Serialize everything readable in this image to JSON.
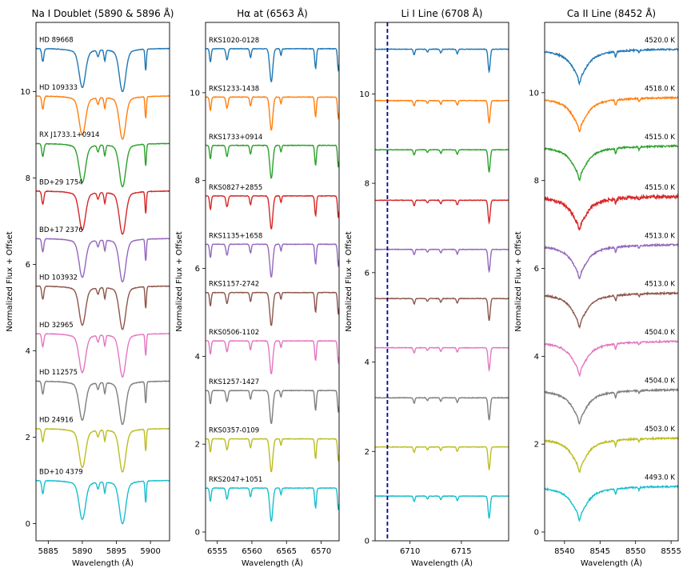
{
  "figure": {
    "colors": [
      "#1f77b4",
      "#ff7f0e",
      "#2ca02c",
      "#d62728",
      "#9467bd",
      "#8c564b",
      "#e377c2",
      "#7f7f7f",
      "#bcbd22",
      "#17becf"
    ]
  },
  "chart_data": [
    {
      "type": "line",
      "title": "Na I Doublet (5890 & 5896 Å)",
      "xlabel": "Wavelength (Å)",
      "ylabel": "Normalized Flux + Offset",
      "xlim": [
        5883.2,
        5902.8
      ],
      "ylim": [
        -0.4,
        11.6
      ],
      "xticks": [
        5885,
        5890,
        5895,
        5900
      ],
      "yticks": [
        0,
        2,
        4,
        6,
        8,
        10
      ],
      "label_mode": "left",
      "series": [
        {
          "label": "HD 89668",
          "offset": 11.0
        },
        {
          "label": "HD 109333",
          "offset": 9.9
        },
        {
          "label": "RX J1733.1+0914",
          "offset": 8.8
        },
        {
          "label": "BD+29 1754",
          "offset": 7.7
        },
        {
          "label": "BD+17 2376",
          "offset": 6.6
        },
        {
          "label": "HD 103932",
          "offset": 5.5
        },
        {
          "label": "HD 32965",
          "offset": 4.4
        },
        {
          "label": "HD 112575",
          "offset": 3.3
        },
        {
          "label": "HD 24916",
          "offset": 2.2
        },
        {
          "label": "BD+10 4379",
          "offset": 1.0
        }
      ],
      "lines": [
        {
          "c": 5884.2,
          "d": 0.3,
          "w": 0.15
        },
        {
          "c": 5890.0,
          "d": 0.75,
          "w": 0.45
        },
        {
          "c": 5892.3,
          "d": 0.15,
          "w": 0.15
        },
        {
          "c": 5893.3,
          "d": 0.25,
          "w": 0.12
        },
        {
          "c": 5895.9,
          "d": 0.85,
          "w": 0.45
        },
        {
          "c": 5899.3,
          "d": 0.5,
          "w": 0.1
        }
      ]
    },
    {
      "type": "line",
      "title": "Hα at (6563 Å)",
      "xlabel": "Wavelength (Å)",
      "ylabel": "Normalized Flux + Offset",
      "xlim": [
        6553.3,
        6572.6
      ],
      "ylim": [
        -0.2,
        11.6
      ],
      "xticks": [
        6555,
        6560,
        6565,
        6570
      ],
      "yticks": [
        0,
        2,
        4,
        6,
        8,
        10
      ],
      "label_mode": "left",
      "series": [
        {
          "label": "RKS1020-0128",
          "offset": 11.0
        },
        {
          "label": "RKS1233-1438",
          "offset": 9.9
        },
        {
          "label": "RKS1733+0914",
          "offset": 8.8
        },
        {
          "label": "RKS0827+2855",
          "offset": 7.65
        },
        {
          "label": "RKS1135+1658",
          "offset": 6.55
        },
        {
          "label": "RKS1157-2742",
          "offset": 5.45
        },
        {
          "label": "RKS0506-1102",
          "offset": 4.35
        },
        {
          "label": "RKS1257-1427",
          "offset": 3.22
        },
        {
          "label": "RKS0357-0109",
          "offset": 2.12
        },
        {
          "label": "RKS2047+1051",
          "offset": 1.0
        }
      ],
      "lines": [
        {
          "c": 6554.0,
          "d": 0.3,
          "w": 0.12
        },
        {
          "c": 6556.4,
          "d": 0.25,
          "w": 0.15
        },
        {
          "c": 6559.8,
          "d": 0.2,
          "w": 0.12
        },
        {
          "c": 6562.8,
          "d": 0.75,
          "w": 0.22
        },
        {
          "c": 6564.2,
          "d": 0.15,
          "w": 0.1
        },
        {
          "c": 6569.2,
          "d": 0.45,
          "w": 0.12
        },
        {
          "c": 6572.5,
          "d": 0.5,
          "w": 0.12
        }
      ]
    },
    {
      "type": "line",
      "title": "Li I Line (6708 Å)",
      "xlabel": "Wavelength (Å)",
      "ylabel": "Normalized Flux + Offset",
      "xlim": [
        6706.6,
        6719.6
      ],
      "ylim": [
        0,
        11.6
      ],
      "xticks": [
        6710,
        6715
      ],
      "yticks": [
        0,
        2,
        4,
        6,
        8,
        10
      ],
      "label_mode": "none",
      "vline": {
        "x": 6707.8,
        "color": "#00008b"
      },
      "series": [
        {
          "label": "",
          "offset": 11.0
        },
        {
          "label": "",
          "offset": 9.85
        },
        {
          "label": "",
          "offset": 8.75
        },
        {
          "label": "",
          "offset": 7.62
        },
        {
          "label": "",
          "offset": 6.52
        },
        {
          "label": "",
          "offset": 5.42
        },
        {
          "label": "",
          "offset": 4.32
        },
        {
          "label": "",
          "offset": 3.2
        },
        {
          "label": "",
          "offset": 2.1
        },
        {
          "label": "",
          "offset": 1.0
        }
      ],
      "lines": [
        {
          "c": 6710.4,
          "d": 0.12,
          "w": 0.08
        },
        {
          "c": 6711.7,
          "d": 0.06,
          "w": 0.08
        },
        {
          "c": 6713.0,
          "d": 0.08,
          "w": 0.08
        },
        {
          "c": 6714.6,
          "d": 0.1,
          "w": 0.08
        },
        {
          "c": 6717.7,
          "d": 0.5,
          "w": 0.1
        }
      ]
    },
    {
      "type": "line",
      "title": "Ca II Line (8452 Å)",
      "xlabel": "Wavelength (Å)",
      "ylabel": "Normalized Flux + Offset",
      "xlim": [
        8537.2,
        8556.0
      ],
      "ylim": [
        -0.2,
        11.6
      ],
      "xticks": [
        8540,
        8545,
        8550,
        8555
      ],
      "yticks": [
        0,
        2,
        4,
        6,
        8,
        10
      ],
      "label_mode": "right",
      "series": [
        {
          "label": "4520.0 K",
          "offset": 11.0
        },
        {
          "label": "4518.0 K",
          "offset": 9.9
        },
        {
          "label": "4515.0 K",
          "offset": 8.8
        },
        {
          "label": "4515.0 K",
          "offset": 7.65
        },
        {
          "label": "4513.0 K",
          "offset": 6.55
        },
        {
          "label": "4513.0 K",
          "offset": 5.45
        },
        {
          "label": "4504.0 K",
          "offset": 4.35
        },
        {
          "label": "4504.0 K",
          "offset": 3.25
        },
        {
          "label": "4503.0 K",
          "offset": 2.15
        },
        {
          "label": "4493.0 K",
          "offset": 1.05
        }
      ],
      "broad": {
        "c": 8542.1,
        "d": 0.55,
        "w": 1.3
      },
      "lines": [
        {
          "c": 8542.1,
          "d": 0.15,
          "w": 0.15
        },
        {
          "c": 8547.2,
          "d": 0.12,
          "w": 0.1
        },
        {
          "c": 8550.5,
          "d": 0.06,
          "w": 0.1
        }
      ]
    }
  ]
}
